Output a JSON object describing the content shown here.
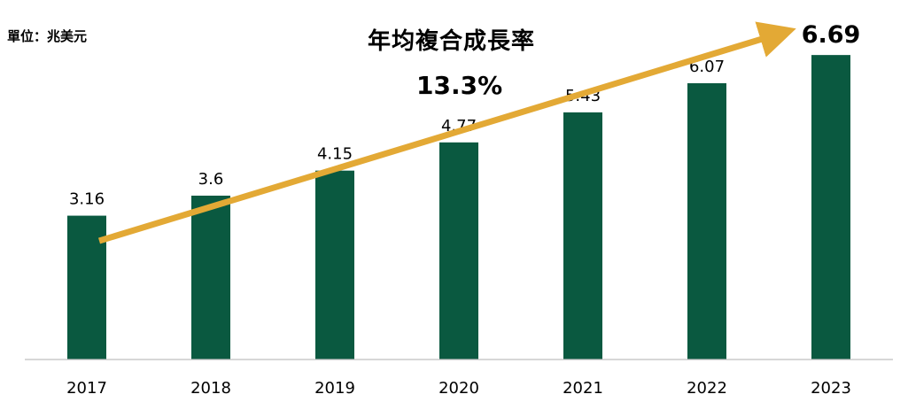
{
  "unit_label": "單位：兆美元",
  "annotation": {
    "title": "年均複合成長率",
    "value": "13.3%"
  },
  "colors": {
    "bar": "#0A5940",
    "arrow": "#E3A935",
    "axis": "#BFBFBF",
    "text": "#000000"
  },
  "chart_data": {
    "type": "bar",
    "title": "",
    "xlabel": "",
    "ylabel": "",
    "categories": [
      "2017",
      "2018",
      "2019",
      "2020",
      "2021",
      "2022",
      "2023"
    ],
    "values": [
      3.16,
      3.6,
      4.15,
      4.77,
      5.43,
      6.07,
      6.69
    ],
    "value_labels": [
      "3.16",
      "3.6",
      "4.15",
      "4.77",
      "5.43",
      "6.07",
      "6.69"
    ],
    "ylim": [
      0,
      6.69
    ],
    "grid": false,
    "legend": "none",
    "trend_arrow": true
  }
}
